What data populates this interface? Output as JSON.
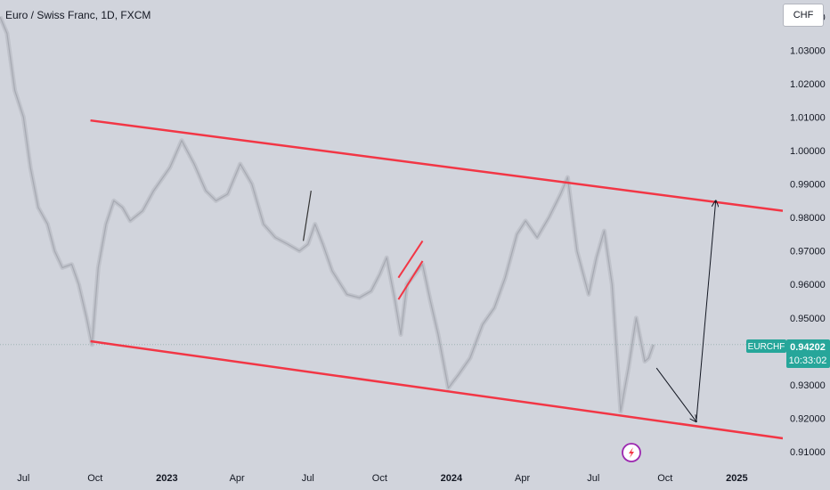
{
  "header": {
    "title": "Euro / Swiss Franc, 1D, FXCM"
  },
  "currency_button": {
    "label": "CHF"
  },
  "price_tag": {
    "symbol": "EURCHF",
    "price": "0.94202",
    "countdown": "10:33:02",
    "color": "#26a69a"
  },
  "colors": {
    "background": "#d1d4dc",
    "candles": "#b2b5be",
    "channel": "#f23645",
    "arrow": "#131722",
    "current_price_line": "#9fb3b5",
    "logo": "#9c27b0"
  },
  "icons": {
    "logo": "lightning-bolt-icon"
  },
  "chart_data": {
    "type": "line",
    "title": "Euro / Swiss Franc, 1D, FXCM",
    "xlabel": "",
    "ylabel": "",
    "x_ticks": [
      {
        "label": "Jul",
        "date": "2022-07-01",
        "bold": false
      },
      {
        "label": "Oct",
        "date": "2022-10-01",
        "bold": false
      },
      {
        "label": "2023",
        "date": "2023-01-01",
        "bold": true
      },
      {
        "label": "Apr",
        "date": "2023-04-01",
        "bold": false
      },
      {
        "label": "Jul",
        "date": "2023-07-01",
        "bold": false
      },
      {
        "label": "Oct",
        "date": "2023-10-01",
        "bold": false
      },
      {
        "label": "2024",
        "date": "2024-01-01",
        "bold": true
      },
      {
        "label": "Apr",
        "date": "2024-04-01",
        "bold": false
      },
      {
        "label": "Jul",
        "date": "2024-07-01",
        "bold": false
      },
      {
        "label": "Oct",
        "date": "2024-10-01",
        "bold": false
      },
      {
        "label": "2025",
        "date": "2025-01-01",
        "bold": true
      }
    ],
    "y_ticks": [
      "1.04000",
      "1.03000",
      "1.02000",
      "1.01000",
      "1.00000",
      "0.99000",
      "0.98000",
      "0.97000",
      "0.96000",
      "0.95000",
      "0.93000",
      "0.92000",
      "0.91000"
    ],
    "xlim": [
      "2022-06-01",
      "2025-03-01"
    ],
    "ylim": [
      0.906,
      1.045
    ],
    "grid": false,
    "series": [
      {
        "points": [
          [
            "2022-06-01",
            1.04
          ],
          [
            "2022-06-10",
            1.035
          ],
          [
            "2022-06-20",
            1.018
          ],
          [
            "2022-07-01",
            1.01
          ],
          [
            "2022-07-10",
            0.995
          ],
          [
            "2022-07-20",
            0.983
          ],
          [
            "2022-08-01",
            0.978
          ],
          [
            "2022-08-10",
            0.97
          ],
          [
            "2022-08-20",
            0.965
          ],
          [
            "2022-09-01",
            0.966
          ],
          [
            "2022-09-10",
            0.96
          ],
          [
            "2022-09-20",
            0.95
          ],
          [
            "2022-09-27",
            0.942
          ],
          [
            "2022-10-05",
            0.965
          ],
          [
            "2022-10-15",
            0.978
          ],
          [
            "2022-10-25",
            0.985
          ],
          [
            "2022-11-05",
            0.983
          ],
          [
            "2022-11-15",
            0.979
          ],
          [
            "2022-12-01",
            0.982
          ],
          [
            "2022-12-15",
            0.988
          ],
          [
            "2023-01-05",
            0.995
          ],
          [
            "2023-01-20",
            1.003
          ],
          [
            "2023-02-05",
            0.996
          ],
          [
            "2023-02-20",
            0.988
          ],
          [
            "2023-03-05",
            0.985
          ],
          [
            "2023-03-20",
            0.987
          ],
          [
            "2023-04-05",
            0.996
          ],
          [
            "2023-04-20",
            0.99
          ],
          [
            "2023-05-05",
            0.978
          ],
          [
            "2023-05-20",
            0.974
          ],
          [
            "2023-06-05",
            0.972
          ],
          [
            "2023-06-20",
            0.97
          ],
          [
            "2023-07-01",
            0.972
          ],
          [
            "2023-07-10",
            0.978
          ],
          [
            "2023-07-20",
            0.972
          ],
          [
            "2023-08-01",
            0.964
          ],
          [
            "2023-08-20",
            0.957
          ],
          [
            "2023-09-05",
            0.956
          ],
          [
            "2023-09-20",
            0.958
          ],
          [
            "2023-10-01",
            0.963
          ],
          [
            "2023-10-10",
            0.968
          ],
          [
            "2023-10-20",
            0.956
          ],
          [
            "2023-10-28",
            0.945
          ],
          [
            "2023-11-05",
            0.96
          ],
          [
            "2023-11-15",
            0.963
          ],
          [
            "2023-11-25",
            0.966
          ],
          [
            "2023-12-05",
            0.955
          ],
          [
            "2023-12-15",
            0.945
          ],
          [
            "2023-12-28",
            0.929
          ],
          [
            "2024-01-10",
            0.933
          ],
          [
            "2024-01-25",
            0.938
          ],
          [
            "2024-02-10",
            0.948
          ],
          [
            "2024-02-25",
            0.953
          ],
          [
            "2024-03-10",
            0.962
          ],
          [
            "2024-03-25",
            0.975
          ],
          [
            "2024-04-05",
            0.979
          ],
          [
            "2024-04-20",
            0.974
          ],
          [
            "2024-05-05",
            0.98
          ],
          [
            "2024-05-20",
            0.987
          ],
          [
            "2024-05-29",
            0.992
          ],
          [
            "2024-06-10",
            0.97
          ],
          [
            "2024-06-25",
            0.957
          ],
          [
            "2024-07-05",
            0.968
          ],
          [
            "2024-07-15",
            0.976
          ],
          [
            "2024-07-25",
            0.96
          ],
          [
            "2024-08-05",
            0.922
          ],
          [
            "2024-08-15",
            0.935
          ],
          [
            "2024-08-25",
            0.95
          ],
          [
            "2024-09-05",
            0.937
          ],
          [
            "2024-09-10",
            0.938
          ],
          [
            "2024-09-16",
            0.942
          ]
        ]
      }
    ],
    "current_price": 0.94202,
    "annotations": [
      {
        "kind": "channel-upper",
        "from": [
          "2022-09-25",
          1.009
        ],
        "to": [
          "2025-03-01",
          0.982
        ]
      },
      {
        "kind": "channel-lower",
        "from": [
          "2022-09-25",
          0.943
        ],
        "to": [
          "2025-03-01",
          0.914
        ]
      },
      {
        "kind": "small-channel-upper",
        "from": [
          "2023-10-25",
          0.962
        ],
        "to": [
          "2023-11-25",
          0.973
        ]
      },
      {
        "kind": "small-channel-lower",
        "from": [
          "2023-10-25",
          0.9555
        ],
        "to": [
          "2023-11-25",
          0.967
        ]
      },
      {
        "kind": "trend-segment",
        "from": [
          "2023-06-25",
          0.973
        ],
        "to": [
          "2023-07-05",
          0.988
        ]
      },
      {
        "kind": "arrow-down",
        "from": [
          "2024-09-20",
          0.935
        ],
        "to": [
          "2024-11-10",
          0.919
        ]
      },
      {
        "kind": "arrow-up",
        "from": [
          "2024-11-10",
          0.919
        ],
        "to": [
          "2024-12-05",
          0.985
        ]
      }
    ]
  }
}
